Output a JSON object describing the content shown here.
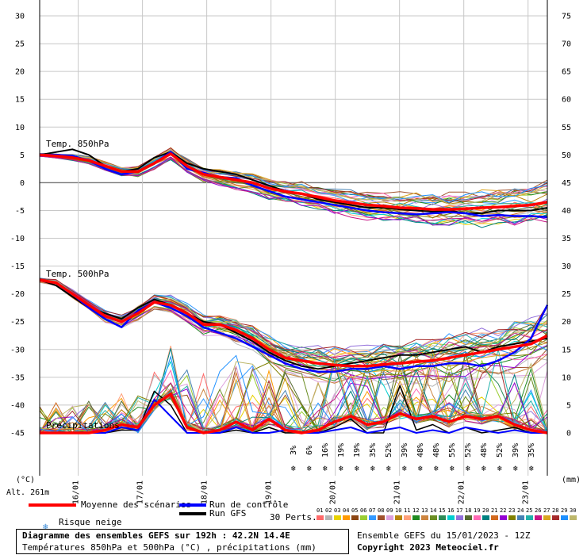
{
  "chart_data": {
    "type": "line",
    "title": "Diagramme des ensembles GEFS sur 192h : 42.2N 14.4E",
    "subtitle": "Températures 850hPa et 500hPa (°C) , précipitations (mm)",
    "run_info": "Ensemble GEFS du 15/01/2023 - 12Z",
    "copyright": "Copyright 2023 Meteociel.fr",
    "altitude": "Alt. 261m",
    "left_unit": "(°C)",
    "right_unit": "(mm)",
    "left_ticks": [
      30,
      25,
      20,
      15,
      10,
      5,
      0,
      -5,
      -10,
      -15,
      -20,
      -25,
      -30,
      -35,
      -40,
      -45
    ],
    "right_ticks": [
      75,
      70,
      65,
      60,
      55,
      50,
      45,
      40,
      35,
      30,
      25,
      20,
      15,
      10,
      5,
      0
    ],
    "ylim_temp": [
      -45,
      30
    ],
    "ylim_precip": [
      0,
      75
    ],
    "x_ticks": [
      "16/01",
      "17/01",
      "18/01",
      "19/01",
      "20/01",
      "21/01",
      "22/01",
      "23/01"
    ],
    "panel_labels": {
      "t850": "Temp. 850hPa",
      "t500": "Temp. 500hPa",
      "precip": "Précipitations"
    },
    "snow_risk": [
      "3%",
      "6%",
      "16%",
      "19%",
      "19%",
      "35%",
      "52%",
      "39%",
      "48%",
      "48%",
      "55%",
      "52%",
      "48%",
      "52%",
      "39%",
      "35%"
    ],
    "mean_850": [
      5,
      4.8,
      4.5,
      4,
      3,
      2,
      2,
      3.5,
      5.2,
      3,
      1.5,
      1,
      0.5,
      0,
      -1,
      -1.6,
      -2,
      -2.6,
      -3.2,
      -3.6,
      -4,
      -4.2,
      -4.5,
      -4.6,
      -4.8,
      -4.8,
      -4.7,
      -4.5,
      -4.4,
      -4.2,
      -4,
      -3.5
    ],
    "ctrl_850": [
      5,
      5,
      4.8,
      4,
      2.5,
      1.5,
      2,
      3.5,
      5.5,
      2.5,
      1.8,
      1,
      0.8,
      -0.5,
      -1.5,
      -2.5,
      -3,
      -3.5,
      -4,
      -4.5,
      -5,
      -5.3,
      -5.5,
      -5.7,
      -5.5,
      -5.3,
      -5.5,
      -6,
      -5.8,
      -6,
      -6,
      -6.2
    ],
    "gfs_850": [
      5,
      5.5,
      6,
      5,
      3,
      2,
      2.5,
      4.5,
      5.5,
      3.5,
      2.5,
      2,
      1.5,
      0.5,
      -0.5,
      -1.5,
      -2,
      -3,
      -3.5,
      -4,
      -4.5,
      -4.5,
      -4.8,
      -5,
      -5.2,
      -5,
      -5.5,
      -5.5,
      -5,
      -5,
      -5,
      -4.5
    ],
    "mean_500": [
      -17.5,
      -18,
      -20,
      -22,
      -24,
      -25,
      -23.5,
      -21.5,
      -22,
      -23.5,
      -25.5,
      -25.5,
      -26.5,
      -28,
      -30,
      -31.5,
      -32,
      -32.5,
      -32.8,
      -33,
      -33,
      -32.7,
      -32.5,
      -32.2,
      -32,
      -31.5,
      -31,
      -30.5,
      -30,
      -29.5,
      -29,
      -27.5
    ],
    "ctrl_500": [
      -17.5,
      -18,
      -20,
      -22.5,
      -24.5,
      -26,
      -23,
      -21.5,
      -22.5,
      -24,
      -26,
      -27,
      -28,
      -29.5,
      -31,
      -32.5,
      -33.5,
      -34,
      -34,
      -33.5,
      -33.5,
      -33,
      -33.5,
      -33,
      -33,
      -32.5,
      -32.5,
      -33,
      -32,
      -30.5,
      -28,
      -22
    ],
    "gfs_500": [
      -17.5,
      -18.5,
      -20.5,
      -22.5,
      -23.5,
      -24.5,
      -22.5,
      -21,
      -22,
      -23.5,
      -25,
      -25.5,
      -27,
      -28.5,
      -30.5,
      -32,
      -33,
      -33.5,
      -33,
      -32.5,
      -32,
      -31.5,
      -31,
      -31,
      -30.5,
      -30,
      -29.5,
      -30.5,
      -29.5,
      -29,
      -28.5,
      -28
    ],
    "mean_precip": [
      0,
      0,
      0,
      0,
      0.5,
      1.5,
      1,
      5,
      7,
      1,
      0,
      0.5,
      2,
      0.5,
      2.5,
      0.5,
      0,
      0.5,
      2,
      3,
      1.5,
      2,
      3.5,
      2.5,
      3,
      2,
      3,
      2.5,
      3,
      1.5,
      0.5,
      0
    ],
    "ctrl_precip": [
      0,
      0,
      0,
      0,
      0,
      1,
      0.5,
      6,
      3,
      0,
      0,
      0,
      1,
      0,
      0,
      0.5,
      0,
      0,
      0.5,
      1,
      0,
      0.5,
      1,
      0,
      0.5,
      0,
      1,
      0.5,
      0,
      0.5,
      0,
      0
    ],
    "gfs_precip": [
      0,
      0,
      0,
      0,
      0,
      0.5,
      0.5,
      7.5,
      5,
      0,
      0,
      0,
      0.5,
      0,
      1,
      0,
      0,
      0,
      1,
      2.5,
      0,
      0,
      8.5,
      0.5,
      1.5,
      0,
      1,
      0,
      0.5,
      1,
      0,
      0
    ],
    "num_perturbations": 30
  },
  "legend": {
    "mean": "Moyenne des scénarios",
    "control": "Run de contrôle",
    "gfs": "Run GFS",
    "snow": "Risque neige",
    "perts": "30 Perts.",
    "pert_numbers": [
      "01",
      "02",
      "03",
      "04",
      "05",
      "06",
      "07",
      "08",
      "09",
      "10",
      "11",
      "12",
      "13",
      "14",
      "15",
      "16",
      "17",
      "18",
      "19",
      "20",
      "21",
      "22",
      "23",
      "24",
      "25",
      "26",
      "27",
      "28",
      "29",
      "30"
    ]
  },
  "colors": {
    "mean": "#ff0000",
    "control": "#0000ff",
    "gfs": "#000000",
    "snow": "#3a8cd8",
    "perturbations": [
      "#ff6a6a",
      "#b5b5b5",
      "#e8d200",
      "#ff9a00",
      "#8b4513",
      "#9acd32",
      "#3399ff",
      "#a0522d",
      "#dda0dd",
      "#b8860b",
      "#ffa07a",
      "#228b22",
      "#cd853f",
      "#6b8e23",
      "#2e8b57",
      "#00ced1",
      "#9370db",
      "#556b2f",
      "#ff69b4",
      "#008080",
      "#d2691e",
      "#9400d3",
      "#808000",
      "#4682b4",
      "#20b2aa",
      "#c71585",
      "#daa520",
      "#a52a2a",
      "#1e90ff",
      "#bdb76b"
    ]
  }
}
